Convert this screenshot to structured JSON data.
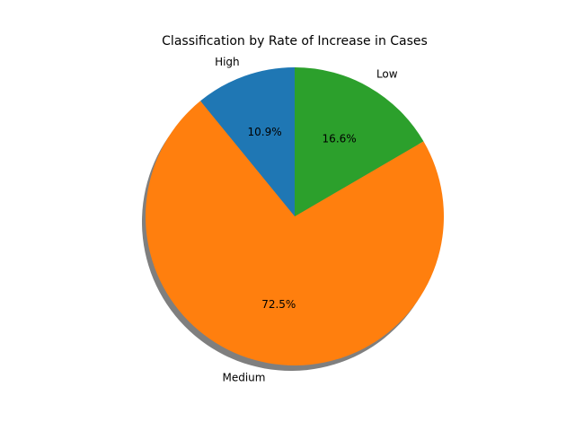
{
  "chart_data": {
    "type": "pie",
    "title": "Classification by Rate of Increase in Cases",
    "categories": [
      "High",
      "Medium",
      "Low"
    ],
    "values": [
      10.9,
      72.5,
      16.6
    ],
    "value_labels": [
      "10.9%",
      "72.5%",
      "16.6%"
    ],
    "colors": [
      "#1f77b4",
      "#ff7f0e",
      "#2ca02c"
    ],
    "start_angle_deg": 90,
    "direction": "counterclockwise",
    "shadow": true,
    "legend": "none"
  }
}
